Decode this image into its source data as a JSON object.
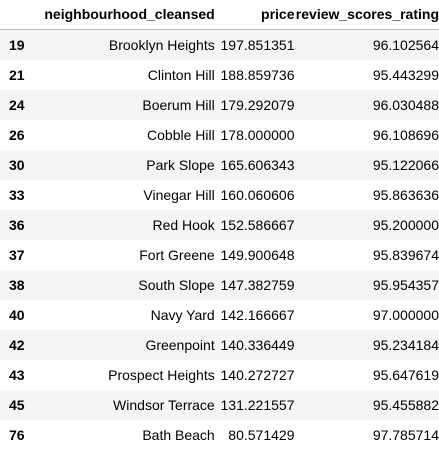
{
  "table": {
    "columns": [
      "",
      "neighbourhood_cleansed",
      "price",
      "review_scores_rating"
    ],
    "rows": [
      {
        "index": "19",
        "neighbourhood": "Brooklyn Heights",
        "price": "197.851351",
        "rating": "96.102564"
      },
      {
        "index": "21",
        "neighbourhood": "Clinton Hill",
        "price": "188.859736",
        "rating": "95.443299"
      },
      {
        "index": "24",
        "neighbourhood": "Boerum Hill",
        "price": "179.292079",
        "rating": "96.030488"
      },
      {
        "index": "26",
        "neighbourhood": "Cobble Hill",
        "price": "178.000000",
        "rating": "96.108696"
      },
      {
        "index": "30",
        "neighbourhood": "Park Slope",
        "price": "165.606343",
        "rating": "95.122066"
      },
      {
        "index": "33",
        "neighbourhood": "Vinegar Hill",
        "price": "160.060606",
        "rating": "95.863636"
      },
      {
        "index": "36",
        "neighbourhood": "Red Hook",
        "price": "152.586667",
        "rating": "95.200000"
      },
      {
        "index": "37",
        "neighbourhood": "Fort Greene",
        "price": "149.900648",
        "rating": "95.839674"
      },
      {
        "index": "38",
        "neighbourhood": "South Slope",
        "price": "147.382759",
        "rating": "95.954357"
      },
      {
        "index": "40",
        "neighbourhood": "Navy Yard",
        "price": "142.166667",
        "rating": "97.000000"
      },
      {
        "index": "42",
        "neighbourhood": "Greenpoint",
        "price": "140.336449",
        "rating": "95.234184"
      },
      {
        "index": "43",
        "neighbourhood": "Prospect Heights",
        "price": "140.272727",
        "rating": "95.647619"
      },
      {
        "index": "45",
        "neighbourhood": "Windsor Terrace",
        "price": "131.221557",
        "rating": "95.455882"
      },
      {
        "index": "76",
        "neighbourhood": "Bath Beach",
        "price": "80.571429",
        "rating": "97.785714"
      }
    ]
  },
  "colors": {
    "stripe": "#f5f5f5",
    "header_border": "#bdbdbd"
  }
}
